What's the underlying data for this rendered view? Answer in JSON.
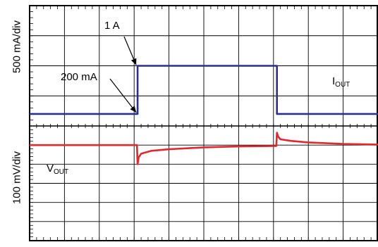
{
  "chart_data": [
    {
      "type": "line",
      "panel": "top",
      "ylabel": "500 mA/div",
      "divisions": {
        "x": 10,
        "y": 4
      },
      "series": [
        {
          "name": "I_OUT",
          "color": "#2b2f8f",
          "x": [
            0,
            3.1,
            3.1,
            7.1,
            7.1,
            10
          ],
          "y": [
            0.4,
            0.4,
            2.0,
            2.0,
            0.4,
            0.4
          ]
        }
      ],
      "annotations": [
        {
          "text": "1 A",
          "x": 3.1,
          "y": 2.0
        },
        {
          "text": "200 mA",
          "x": 3.1,
          "y": 0.4
        }
      ],
      "trace_label": {
        "main": "I",
        "sub": "OUT"
      }
    },
    {
      "type": "line",
      "panel": "bottom",
      "ylabel": "100 mV/div",
      "divisions": {
        "x": 10,
        "y": 6
      },
      "series": [
        {
          "name": "V_OUT",
          "color": "#e0282e",
          "x": [
            0,
            3.08,
            3.1,
            3.13,
            3.2,
            3.5,
            4.0,
            5.0,
            6.0,
            7.0,
            7.08,
            7.1,
            7.13,
            7.2,
            7.5,
            8.0,
            9.0,
            10.0
          ],
          "y": [
            5.0,
            5.0,
            4.0,
            4.35,
            4.55,
            4.7,
            4.78,
            4.88,
            4.93,
            4.95,
            4.95,
            5.65,
            5.45,
            5.3,
            5.22,
            5.14,
            5.06,
            5.03
          ]
        }
      ],
      "trace_label": {
        "main": "V",
        "sub": "OUT"
      }
    }
  ],
  "colors": {
    "grid": "#000000",
    "current_trace": "#2b2f8f",
    "voltage_trace": "#e0282e"
  }
}
